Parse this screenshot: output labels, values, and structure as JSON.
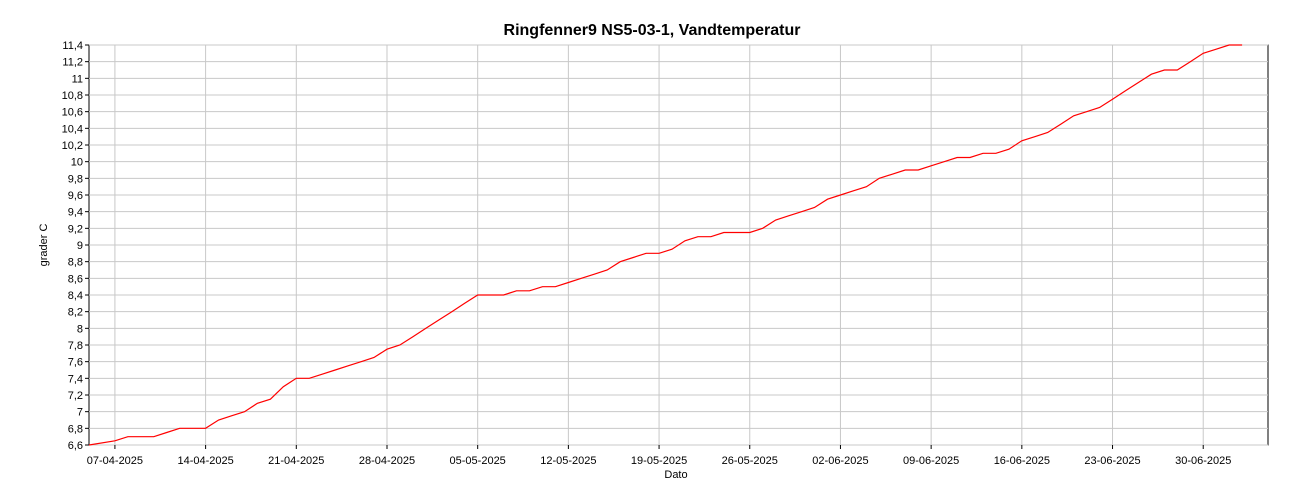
{
  "chart_data": {
    "type": "line",
    "title": "Ringfenner9 NS5-03-1, Vandtemperatur",
    "xlabel": "Dato",
    "ylabel": "grader C",
    "x_tick_labels": [
      "07-04-2025",
      "14-04-2025",
      "21-04-2025",
      "28-04-2025",
      "05-05-2025",
      "12-05-2025",
      "19-05-2025",
      "26-05-2025",
      "02-06-2025",
      "09-06-2025",
      "16-06-2025",
      "23-06-2025",
      "30-06-2025"
    ],
    "y_tick_labels": [
      "6,6",
      "6,8",
      "7",
      "7,2",
      "7,4",
      "7,6",
      "7,8",
      "8",
      "8,2",
      "8,4",
      "8,6",
      "8,8",
      "9",
      "9,2",
      "9,4",
      "9,6",
      "9,8",
      "10",
      "10,2",
      "10,4",
      "10,6",
      "10,8",
      "11",
      "11,2",
      "11,4"
    ],
    "xlim": [
      "2025-04-05",
      "2025-07-05"
    ],
    "ylim": [
      6.6,
      11.4
    ],
    "grid": true,
    "series": [
      {
        "color": "#ff0000",
        "x": [
          "2025-04-05",
          "2025-04-07",
          "2025-04-08",
          "2025-04-10",
          "2025-04-11",
          "2025-04-12",
          "2025-04-13",
          "2025-04-14",
          "2025-04-15",
          "2025-04-16",
          "2025-04-17",
          "2025-04-18",
          "2025-04-19",
          "2025-04-20",
          "2025-04-21",
          "2025-04-22",
          "2025-04-23",
          "2025-04-24",
          "2025-04-25",
          "2025-04-26",
          "2025-04-27",
          "2025-04-28",
          "2025-04-29",
          "2025-04-30",
          "2025-05-01",
          "2025-05-02",
          "2025-05-03",
          "2025-05-04",
          "2025-05-05",
          "2025-05-06",
          "2025-05-07",
          "2025-05-08",
          "2025-05-09",
          "2025-05-10",
          "2025-05-11",
          "2025-05-12",
          "2025-05-13",
          "2025-05-14",
          "2025-05-15",
          "2025-05-16",
          "2025-05-17",
          "2025-05-18",
          "2025-05-19",
          "2025-05-20",
          "2025-05-21",
          "2025-05-22",
          "2025-05-23",
          "2025-05-24",
          "2025-05-25",
          "2025-05-26",
          "2025-05-27",
          "2025-05-28",
          "2025-05-29",
          "2025-05-30",
          "2025-05-31",
          "2025-06-01",
          "2025-06-02",
          "2025-06-03",
          "2025-06-04",
          "2025-06-05",
          "2025-06-06",
          "2025-06-07",
          "2025-06-08",
          "2025-06-09",
          "2025-06-10",
          "2025-06-11",
          "2025-06-12",
          "2025-06-13",
          "2025-06-14",
          "2025-06-15",
          "2025-06-16",
          "2025-06-17",
          "2025-06-18",
          "2025-06-19",
          "2025-06-20",
          "2025-06-21",
          "2025-06-22",
          "2025-06-23",
          "2025-06-24",
          "2025-06-25",
          "2025-06-26",
          "2025-06-27",
          "2025-06-28",
          "2025-06-29",
          "2025-06-30",
          "2025-07-01",
          "2025-07-02",
          "2025-07-03"
        ],
        "y": [
          6.6,
          6.65,
          6.7,
          6.7,
          6.75,
          6.8,
          6.8,
          6.8,
          6.9,
          6.95,
          7.0,
          7.1,
          7.15,
          7.3,
          7.4,
          7.4,
          7.45,
          7.5,
          7.55,
          7.6,
          7.65,
          7.75,
          7.8,
          7.9,
          8.0,
          8.1,
          8.2,
          8.3,
          8.4,
          8.4,
          8.4,
          8.45,
          8.45,
          8.5,
          8.5,
          8.55,
          8.6,
          8.65,
          8.7,
          8.8,
          8.85,
          8.9,
          8.9,
          8.95,
          9.05,
          9.1,
          9.1,
          9.15,
          9.15,
          9.15,
          9.2,
          9.3,
          9.35,
          9.4,
          9.45,
          9.55,
          9.6,
          9.65,
          9.7,
          9.8,
          9.85,
          9.9,
          9.9,
          9.95,
          10.0,
          10.05,
          10.05,
          10.1,
          10.1,
          10.15,
          10.25,
          10.3,
          10.35,
          10.45,
          10.55,
          10.6,
          10.65,
          10.75,
          10.85,
          10.95,
          11.05,
          11.1,
          11.1,
          11.2,
          11.3,
          11.35,
          11.4,
          11.4
        ]
      }
    ]
  }
}
